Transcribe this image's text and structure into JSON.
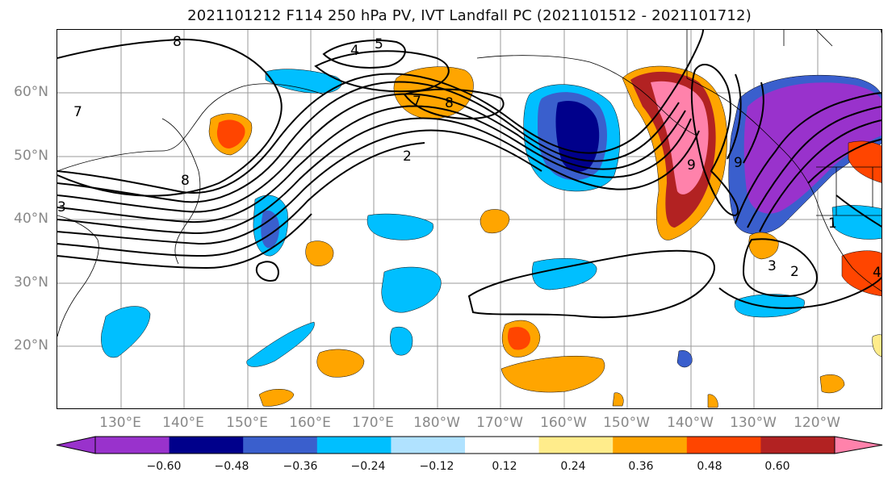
{
  "title": "2021101212 F114 250 hPa PV, IVT Landfall PC (2021101512 - 2021101712)",
  "latitude_labels": [
    "60°N",
    "50°N",
    "40°N",
    "30°N",
    "20°N"
  ],
  "longitude_labels": [
    "130°E",
    "140°E",
    "150°E",
    "160°E",
    "170°E",
    "180°W",
    "170°W",
    "160°W",
    "150°W",
    "140°W",
    "130°W",
    "120°W"
  ],
  "contour_labels": [
    "8",
    "5",
    "4",
    "7",
    "7",
    "8",
    "8",
    "2",
    "9",
    "9",
    "1",
    "3",
    "3",
    "2",
    "4"
  ],
  "colorbar": {
    "ticks": [
      "−0.60",
      "−0.48",
      "−0.36",
      "−0.24",
      "−0.12",
      "0.12",
      "0.24",
      "0.36",
      "0.48",
      "0.60"
    ],
    "colors": [
      "#9932cc",
      "#00008b",
      "#3a5fcd",
      "#00bfff",
      "#b0e2ff",
      "#ffffff",
      "#ffec8b",
      "#ffa500",
      "#ff4500",
      "#b22222",
      "#ff82ab"
    ]
  }
}
